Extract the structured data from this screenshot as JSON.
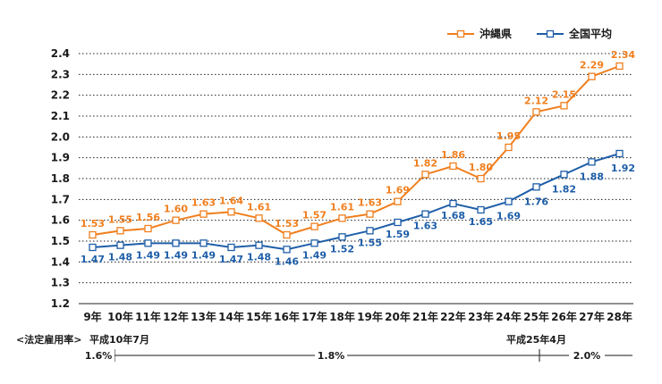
{
  "chart_data": {
    "type": "line",
    "categories": [
      "9年",
      "10年",
      "11年",
      "12年",
      "13年",
      "14年",
      "15年",
      "16年",
      "17年",
      "18年",
      "19年",
      "20年",
      "21年",
      "22年",
      "23年",
      "24年",
      "25年",
      "26年",
      "27年",
      "28年"
    ],
    "series": [
      {
        "name": "沖縄県",
        "color": "#F07F1E",
        "values": [
          1.53,
          1.55,
          1.56,
          1.6,
          1.63,
          1.64,
          1.61,
          1.53,
          1.57,
          1.61,
          1.63,
          1.69,
          1.82,
          1.86,
          1.8,
          1.95,
          2.12,
          2.15,
          2.29,
          2.34
        ],
        "labels": [
          "1.53",
          "1.55",
          "1.56",
          "1.60",
          "1.63",
          "1.64",
          "1.61",
          "1.53",
          "1.57",
          "1.61",
          "1.63",
          "1.69",
          "1.82",
          "1.86",
          "1.80",
          "1.95",
          "2.12",
          "2.15",
          "2.29",
          "2.34"
        ]
      },
      {
        "name": "全国平均",
        "color": "#1E5EA8",
        "values": [
          1.47,
          1.48,
          1.49,
          1.49,
          1.49,
          1.47,
          1.48,
          1.46,
          1.49,
          1.52,
          1.55,
          1.59,
          1.63,
          1.68,
          1.65,
          1.69,
          1.76,
          1.82,
          1.88,
          1.92
        ],
        "labels": [
          "1.47",
          "1.48",
          "1.49",
          "1.49",
          "1.49",
          "1.47",
          "1.48",
          "1.46",
          "1.49",
          "1.52",
          "1.55",
          "1.59",
          "1.63",
          "1.68",
          "1.65",
          "1.69",
          "1.76",
          "1.82",
          "1.88",
          "1.92"
        ]
      }
    ],
    "yticks": [
      "1.2",
      "1.3",
      "1.4",
      "1.5",
      "1.6",
      "1.7",
      "1.8",
      "1.9",
      "2.0",
      "2.1",
      "2.2",
      "2.3",
      "2.4"
    ],
    "ylim": [
      1.2,
      2.4
    ],
    "grid": true,
    "legend_position": "top-right"
  },
  "footnote": {
    "label": "<法定雇用率>",
    "period1": "平成10年7月",
    "period2": "平成25年4月",
    "rate1": "1.6%",
    "rate2": "1.8%",
    "rate3": "2.0%"
  }
}
